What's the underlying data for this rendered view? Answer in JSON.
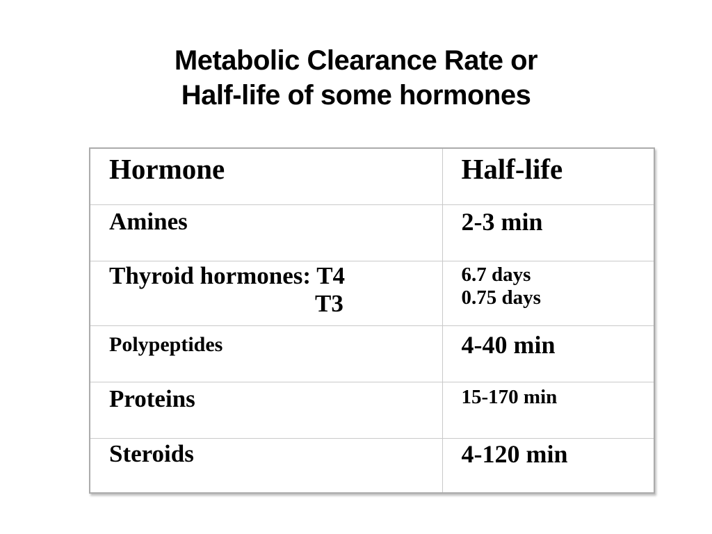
{
  "title": {
    "line1": "Metabolic Clearance Rate or",
    "line2": "Half-life of some hormones"
  },
  "table": {
    "headers": [
      "Hormone",
      "Half-life"
    ],
    "rows": [
      {
        "hormone_lines": [
          "Amines"
        ],
        "halflife_lines": [
          "2-3 min"
        ]
      },
      {
        "hormone_lines": [
          "Thyroid hormones: T4",
          "T3"
        ],
        "halflife_lines": [
          "6.7 days",
          "0.75 days"
        ]
      },
      {
        "hormone_lines": [
          "Polypeptides"
        ],
        "halflife_lines": [
          "4-40 min"
        ]
      },
      {
        "hormone_lines": [
          "Proteins"
        ],
        "halflife_lines": [
          "15-170 min"
        ]
      },
      {
        "hormone_lines": [
          "Steroids"
        ],
        "halflife_lines": [
          "4-120 min"
        ]
      }
    ]
  },
  "colors": {
    "background": "#ffffff",
    "text": "#000000",
    "table_outer_border": "#ababab",
    "table_inner_border": "#c9c9c9"
  }
}
